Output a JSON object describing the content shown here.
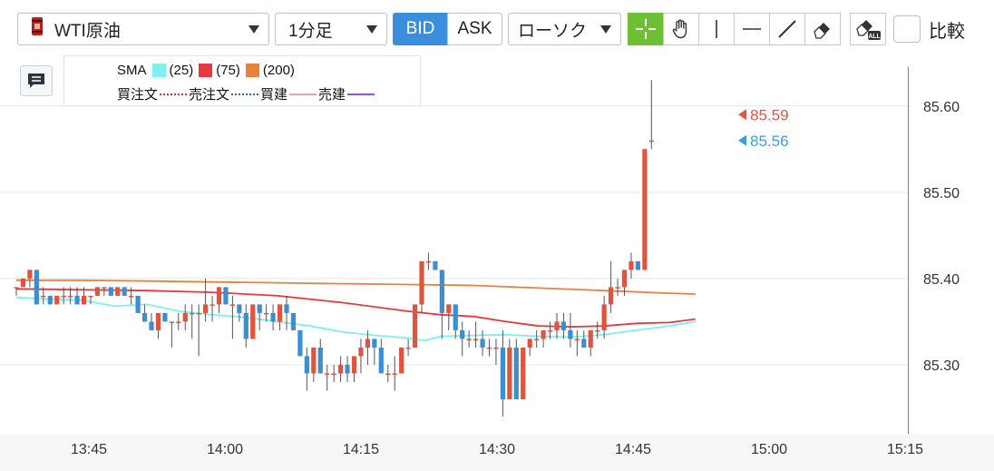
{
  "toolbar": {
    "instrument": "WTI原油",
    "timeframe": "1分足",
    "bid_label": "BID",
    "ask_label": "ASK",
    "chart_type": "ローソク",
    "compare_label": "比較",
    "compare_checked": false,
    "tools": [
      "crosshair-icon",
      "hand-pan-icon",
      "vertical-line-icon",
      "horizontal-line-icon",
      "trendline-icon",
      "eraser-icon",
      "erase-all-icon"
    ]
  },
  "legend": {
    "sma_label": "SMA",
    "sma": [
      {
        "period": "(25)",
        "color": "#7ff0f0"
      },
      {
        "period": "(75)",
        "color": "#e8383d"
      },
      {
        "period": "(200)",
        "color": "#e8823a"
      }
    ],
    "orders": [
      {
        "label": "買注文",
        "color": "#d9332b",
        "style": "dotted"
      },
      {
        "label": "売注文",
        "color": "#2b5fd9",
        "style": "dotted"
      },
      {
        "label": "買建",
        "color": "#f4a0a0",
        "style": "solid"
      },
      {
        "label": "売建",
        "color": "#9b4fd0",
        "style": "solid"
      }
    ]
  },
  "chart_data": {
    "type": "candlestick",
    "ylim": [
      85.22,
      85.645
    ],
    "yticks": [
      "85.30",
      "85.40",
      "85.50",
      "85.60"
    ],
    "xticks": [
      "13:45",
      "14:00",
      "14:15",
      "14:30",
      "14:45",
      "15:00",
      "15:15"
    ],
    "start_time": "13:40",
    "price_labels": [
      {
        "value": "85.59",
        "color": "#e8553e"
      },
      {
        "value": "85.56",
        "color": "#3ea0d8"
      }
    ],
    "up_color": "#e0533f",
    "down_color": "#3b8fd0",
    "candles": [
      [
        85.39,
        85.39,
        85.38,
        85.39
      ],
      [
        85.39,
        85.4,
        85.39,
        85.4
      ],
      [
        85.4,
        85.41,
        85.39,
        85.41
      ],
      [
        85.41,
        85.41,
        85.37,
        85.37
      ],
      [
        85.38,
        85.39,
        85.37,
        85.38
      ],
      [
        85.38,
        85.38,
        85.37,
        85.37
      ],
      [
        85.37,
        85.38,
        85.37,
        85.38
      ],
      [
        85.38,
        85.39,
        85.37,
        85.38
      ],
      [
        85.38,
        85.39,
        85.37,
        85.38
      ],
      [
        85.38,
        85.39,
        85.37,
        85.37
      ],
      [
        85.37,
        85.39,
        85.37,
        85.38
      ],
      [
        85.38,
        85.38,
        85.37,
        85.38
      ],
      [
        85.38,
        85.39,
        85.38,
        85.39
      ],
      [
        85.39,
        85.39,
        85.38,
        85.39
      ],
      [
        85.39,
        85.39,
        85.38,
        85.38
      ],
      [
        85.38,
        85.39,
        85.38,
        85.39
      ],
      [
        85.39,
        85.39,
        85.38,
        85.38
      ],
      [
        85.38,
        85.39,
        85.37,
        85.38
      ],
      [
        85.38,
        85.38,
        85.36,
        85.36
      ],
      [
        85.36,
        85.37,
        85.35,
        85.35
      ],
      [
        85.35,
        85.36,
        85.34,
        85.34
      ],
      [
        85.34,
        85.36,
        85.33,
        85.36
      ],
      [
        85.36,
        85.36,
        85.35,
        85.35
      ],
      [
        85.35,
        85.35,
        85.32,
        85.35
      ],
      [
        85.35,
        85.36,
        85.34,
        85.35
      ],
      [
        85.35,
        85.37,
        85.34,
        85.36
      ],
      [
        85.36,
        85.37,
        85.33,
        85.36
      ],
      [
        85.36,
        85.37,
        85.31,
        85.36
      ],
      [
        85.36,
        85.4,
        85.35,
        85.37
      ],
      [
        85.37,
        85.38,
        85.35,
        85.37
      ],
      [
        85.37,
        85.39,
        85.36,
        85.39
      ],
      [
        85.39,
        85.39,
        85.37,
        85.37
      ],
      [
        85.37,
        85.38,
        85.33,
        85.37
      ],
      [
        85.37,
        85.37,
        85.35,
        85.36
      ],
      [
        85.36,
        85.37,
        85.32,
        85.33
      ],
      [
        85.33,
        85.37,
        85.33,
        85.37
      ],
      [
        85.37,
        85.37,
        85.34,
        85.36
      ],
      [
        85.36,
        85.37,
        85.35,
        85.36
      ],
      [
        85.36,
        85.37,
        85.34,
        85.35
      ],
      [
        85.35,
        85.37,
        85.34,
        85.37
      ],
      [
        85.37,
        85.38,
        85.34,
        85.36
      ],
      [
        85.36,
        85.36,
        85.34,
        85.34
      ],
      [
        85.34,
        85.34,
        85.31,
        85.31
      ],
      [
        85.31,
        85.32,
        85.27,
        85.29
      ],
      [
        85.29,
        85.32,
        85.28,
        85.32
      ],
      [
        85.32,
        85.33,
        85.29,
        85.29
      ],
      [
        85.29,
        85.3,
        85.27,
        85.29
      ],
      [
        85.29,
        85.3,
        85.28,
        85.29
      ],
      [
        85.29,
        85.31,
        85.28,
        85.3
      ],
      [
        85.3,
        85.31,
        85.28,
        85.29
      ],
      [
        85.29,
        85.31,
        85.28,
        85.31
      ],
      [
        85.31,
        85.33,
        85.29,
        85.32
      ],
      [
        85.32,
        85.34,
        85.3,
        85.33
      ],
      [
        85.33,
        85.33,
        85.3,
        85.32
      ],
      [
        85.32,
        85.33,
        85.29,
        85.29
      ],
      [
        85.29,
        85.3,
        85.28,
        85.29
      ],
      [
        85.29,
        85.31,
        85.27,
        85.29
      ],
      [
        85.29,
        85.32,
        85.29,
        85.32
      ],
      [
        85.32,
        85.33,
        85.31,
        85.32
      ],
      [
        85.32,
        85.37,
        85.32,
        85.37
      ],
      [
        85.37,
        85.42,
        85.36,
        85.42
      ],
      [
        85.42,
        85.43,
        85.41,
        85.42
      ],
      [
        85.42,
        85.42,
        85.41,
        85.41
      ],
      [
        85.41,
        85.41,
        85.33,
        85.36
      ],
      [
        85.36,
        85.37,
        85.34,
        85.37
      ],
      [
        85.37,
        85.37,
        85.33,
        85.34
      ],
      [
        85.34,
        85.35,
        85.31,
        85.33
      ],
      [
        85.33,
        85.34,
        85.32,
        85.33
      ],
      [
        85.33,
        85.35,
        85.32,
        85.33
      ],
      [
        85.33,
        85.34,
        85.31,
        85.32
      ],
      [
        85.32,
        85.33,
        85.31,
        85.32
      ],
      [
        85.32,
        85.33,
        85.3,
        85.32
      ],
      [
        85.32,
        85.34,
        85.24,
        85.26
      ],
      [
        85.26,
        85.33,
        85.26,
        85.32
      ],
      [
        85.32,
        85.33,
        85.26,
        85.26
      ],
      [
        85.26,
        85.32,
        85.26,
        85.32
      ],
      [
        85.32,
        85.33,
        85.31,
        85.33
      ],
      [
        85.33,
        85.34,
        85.32,
        85.33
      ],
      [
        85.33,
        85.34,
        85.32,
        85.34
      ],
      [
        85.34,
        85.35,
        85.33,
        85.34
      ],
      [
        85.34,
        85.36,
        85.33,
        85.35
      ],
      [
        85.35,
        85.36,
        85.33,
        85.34
      ],
      [
        85.34,
        85.36,
        85.32,
        85.33
      ],
      [
        85.33,
        85.34,
        85.31,
        85.33
      ],
      [
        85.33,
        85.34,
        85.32,
        85.32
      ],
      [
        85.32,
        85.34,
        85.31,
        85.34
      ],
      [
        85.34,
        85.35,
        85.33,
        85.34
      ],
      [
        85.34,
        85.38,
        85.33,
        85.37
      ],
      [
        85.37,
        85.42,
        85.36,
        85.39
      ],
      [
        85.39,
        85.4,
        85.38,
        85.39
      ],
      [
        85.39,
        85.41,
        85.38,
        85.41
      ],
      [
        85.41,
        85.43,
        85.4,
        85.42
      ],
      [
        85.42,
        85.42,
        85.41,
        85.41
      ],
      [
        85.41,
        85.55,
        85.41,
        85.55
      ],
      [
        85.56,
        85.63,
        85.55,
        85.56
      ]
    ],
    "sma25": [
      [
        0,
        85.378
      ],
      [
        10,
        85.376
      ],
      [
        20,
        85.375
      ],
      [
        30,
        85.368
      ],
      [
        40,
        85.37
      ],
      [
        50,
        85.362
      ],
      [
        60,
        85.358
      ],
      [
        70,
        85.355
      ],
      [
        80,
        85.35
      ],
      [
        90,
        85.345
      ],
      [
        100,
        85.338
      ],
      [
        110,
        85.334
      ],
      [
        120,
        85.331
      ],
      [
        125,
        85.328
      ],
      [
        130,
        85.333
      ],
      [
        140,
        85.334
      ],
      [
        150,
        85.335
      ],
      [
        160,
        85.333
      ],
      [
        170,
        85.332
      ],
      [
        180,
        85.335
      ],
      [
        190,
        85.34
      ],
      [
        200,
        85.345
      ],
      [
        208,
        85.35
      ]
    ],
    "sma75": [
      [
        0,
        85.388
      ],
      [
        20,
        85.387
      ],
      [
        40,
        85.386
      ],
      [
        60,
        85.384
      ],
      [
        80,
        85.38
      ],
      [
        100,
        85.372
      ],
      [
        120,
        85.362
      ],
      [
        130,
        85.358
      ],
      [
        140,
        85.356
      ],
      [
        150,
        85.35
      ],
      [
        160,
        85.345
      ],
      [
        170,
        85.344
      ],
      [
        180,
        85.345
      ],
      [
        190,
        85.348
      ],
      [
        200,
        85.349
      ],
      [
        208,
        85.353
      ]
    ],
    "sma200": [
      [
        0,
        85.398
      ],
      [
        20,
        85.398
      ],
      [
        40,
        85.397
      ],
      [
        60,
        85.396
      ],
      [
        80,
        85.395
      ],
      [
        100,
        85.394
      ],
      [
        120,
        85.393
      ],
      [
        140,
        85.392
      ],
      [
        160,
        85.389
      ],
      [
        180,
        85.386
      ],
      [
        200,
        85.383
      ],
      [
        208,
        85.382
      ]
    ]
  }
}
